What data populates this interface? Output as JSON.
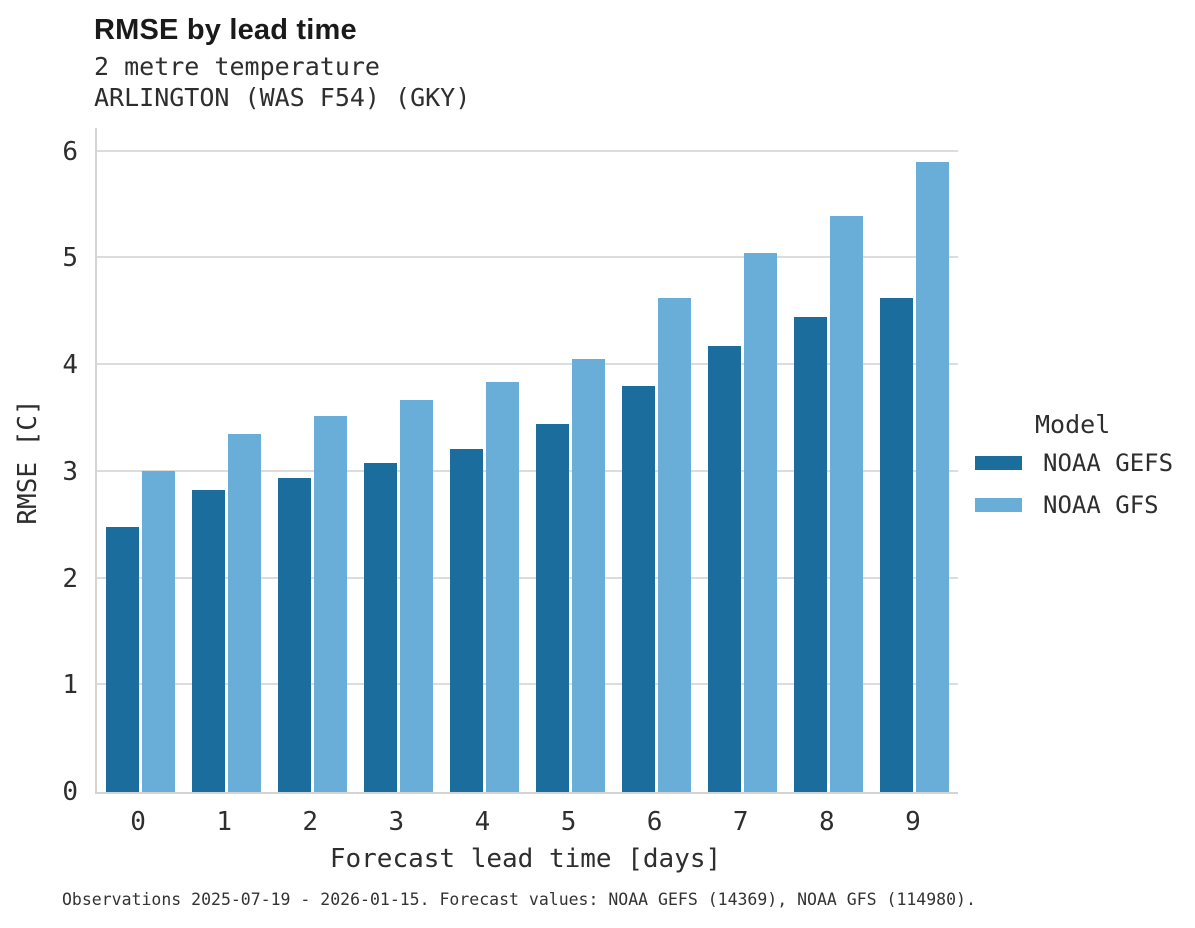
{
  "header": {
    "title": "RMSE by lead time",
    "subtitle_line1": "2 metre temperature",
    "subtitle_line2": "ARLINGTON (WAS F54) (GKY)"
  },
  "chart_data": {
    "type": "bar",
    "title": "RMSE by lead time",
    "subtitle": "2 metre temperature — ARLINGTON (WAS F54) (GKY)",
    "categories": [
      "0",
      "1",
      "2",
      "3",
      "4",
      "5",
      "6",
      "7",
      "8",
      "9"
    ],
    "series": [
      {
        "name": "NOAA GEFS",
        "color": "#1B6D9E",
        "values": [
          2.48,
          2.83,
          2.94,
          3.08,
          3.21,
          3.45,
          3.8,
          4.18,
          4.45,
          4.63
        ]
      },
      {
        "name": "NOAA GFS",
        "color": "#69AED8",
        "values": [
          3.01,
          3.35,
          3.52,
          3.67,
          3.84,
          4.06,
          4.63,
          5.05,
          5.4,
          5.9
        ]
      }
    ],
    "xlabel": "Forecast lead time [days]",
    "ylabel": "RMSE [C]",
    "ylim": [
      0,
      6.22
    ],
    "yticks": [
      0,
      1,
      2,
      3,
      4,
      5,
      6
    ],
    "grid": "horizontal",
    "legend_title": "Model",
    "legend_position": "right"
  },
  "colors": {
    "grid": "#dcdcdc",
    "spine": "#d4d4d4",
    "text": "#2e2e2e",
    "title_text": "#1a1a1a"
  },
  "caption": "Observations 2025-07-19 - 2026-01-15. Forecast values: NOAA GEFS (14369), NOAA GFS (114980)."
}
